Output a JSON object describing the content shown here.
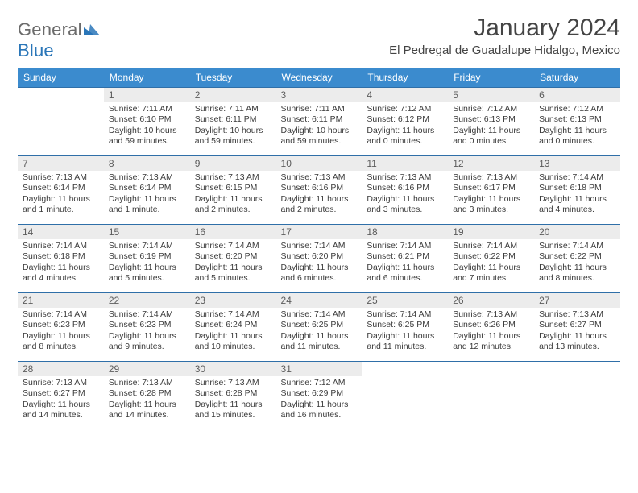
{
  "brand": {
    "part1": "General",
    "part2": "Blue"
  },
  "title": "January 2024",
  "location": "El Pedregal de Guadalupe Hidalgo, Mexico",
  "colors": {
    "header_bg": "#3b8bce",
    "header_fg": "#ffffff",
    "daynum_bg": "#ececec",
    "row_border": "#2f6fa8",
    "logo_gray": "#6b6b6b",
    "logo_blue": "#2a76b8"
  },
  "weekdays": [
    "Sunday",
    "Monday",
    "Tuesday",
    "Wednesday",
    "Thursday",
    "Friday",
    "Saturday"
  ],
  "weeks": [
    [
      {
        "n": "",
        "sunrise": "",
        "sunset": "",
        "daylight": ""
      },
      {
        "n": "1",
        "sunrise": "Sunrise: 7:11 AM",
        "sunset": "Sunset: 6:10 PM",
        "daylight": "Daylight: 10 hours and 59 minutes."
      },
      {
        "n": "2",
        "sunrise": "Sunrise: 7:11 AM",
        "sunset": "Sunset: 6:11 PM",
        "daylight": "Daylight: 10 hours and 59 minutes."
      },
      {
        "n": "3",
        "sunrise": "Sunrise: 7:11 AM",
        "sunset": "Sunset: 6:11 PM",
        "daylight": "Daylight: 10 hours and 59 minutes."
      },
      {
        "n": "4",
        "sunrise": "Sunrise: 7:12 AM",
        "sunset": "Sunset: 6:12 PM",
        "daylight": "Daylight: 11 hours and 0 minutes."
      },
      {
        "n": "5",
        "sunrise": "Sunrise: 7:12 AM",
        "sunset": "Sunset: 6:13 PM",
        "daylight": "Daylight: 11 hours and 0 minutes."
      },
      {
        "n": "6",
        "sunrise": "Sunrise: 7:12 AM",
        "sunset": "Sunset: 6:13 PM",
        "daylight": "Daylight: 11 hours and 0 minutes."
      }
    ],
    [
      {
        "n": "7",
        "sunrise": "Sunrise: 7:13 AM",
        "sunset": "Sunset: 6:14 PM",
        "daylight": "Daylight: 11 hours and 1 minute."
      },
      {
        "n": "8",
        "sunrise": "Sunrise: 7:13 AM",
        "sunset": "Sunset: 6:14 PM",
        "daylight": "Daylight: 11 hours and 1 minute."
      },
      {
        "n": "9",
        "sunrise": "Sunrise: 7:13 AM",
        "sunset": "Sunset: 6:15 PM",
        "daylight": "Daylight: 11 hours and 2 minutes."
      },
      {
        "n": "10",
        "sunrise": "Sunrise: 7:13 AM",
        "sunset": "Sunset: 6:16 PM",
        "daylight": "Daylight: 11 hours and 2 minutes."
      },
      {
        "n": "11",
        "sunrise": "Sunrise: 7:13 AM",
        "sunset": "Sunset: 6:16 PM",
        "daylight": "Daylight: 11 hours and 3 minutes."
      },
      {
        "n": "12",
        "sunrise": "Sunrise: 7:13 AM",
        "sunset": "Sunset: 6:17 PM",
        "daylight": "Daylight: 11 hours and 3 minutes."
      },
      {
        "n": "13",
        "sunrise": "Sunrise: 7:14 AM",
        "sunset": "Sunset: 6:18 PM",
        "daylight": "Daylight: 11 hours and 4 minutes."
      }
    ],
    [
      {
        "n": "14",
        "sunrise": "Sunrise: 7:14 AM",
        "sunset": "Sunset: 6:18 PM",
        "daylight": "Daylight: 11 hours and 4 minutes."
      },
      {
        "n": "15",
        "sunrise": "Sunrise: 7:14 AM",
        "sunset": "Sunset: 6:19 PM",
        "daylight": "Daylight: 11 hours and 5 minutes."
      },
      {
        "n": "16",
        "sunrise": "Sunrise: 7:14 AM",
        "sunset": "Sunset: 6:20 PM",
        "daylight": "Daylight: 11 hours and 5 minutes."
      },
      {
        "n": "17",
        "sunrise": "Sunrise: 7:14 AM",
        "sunset": "Sunset: 6:20 PM",
        "daylight": "Daylight: 11 hours and 6 minutes."
      },
      {
        "n": "18",
        "sunrise": "Sunrise: 7:14 AM",
        "sunset": "Sunset: 6:21 PM",
        "daylight": "Daylight: 11 hours and 6 minutes."
      },
      {
        "n": "19",
        "sunrise": "Sunrise: 7:14 AM",
        "sunset": "Sunset: 6:22 PM",
        "daylight": "Daylight: 11 hours and 7 minutes."
      },
      {
        "n": "20",
        "sunrise": "Sunrise: 7:14 AM",
        "sunset": "Sunset: 6:22 PM",
        "daylight": "Daylight: 11 hours and 8 minutes."
      }
    ],
    [
      {
        "n": "21",
        "sunrise": "Sunrise: 7:14 AM",
        "sunset": "Sunset: 6:23 PM",
        "daylight": "Daylight: 11 hours and 8 minutes."
      },
      {
        "n": "22",
        "sunrise": "Sunrise: 7:14 AM",
        "sunset": "Sunset: 6:23 PM",
        "daylight": "Daylight: 11 hours and 9 minutes."
      },
      {
        "n": "23",
        "sunrise": "Sunrise: 7:14 AM",
        "sunset": "Sunset: 6:24 PM",
        "daylight": "Daylight: 11 hours and 10 minutes."
      },
      {
        "n": "24",
        "sunrise": "Sunrise: 7:14 AM",
        "sunset": "Sunset: 6:25 PM",
        "daylight": "Daylight: 11 hours and 11 minutes."
      },
      {
        "n": "25",
        "sunrise": "Sunrise: 7:14 AM",
        "sunset": "Sunset: 6:25 PM",
        "daylight": "Daylight: 11 hours and 11 minutes."
      },
      {
        "n": "26",
        "sunrise": "Sunrise: 7:13 AM",
        "sunset": "Sunset: 6:26 PM",
        "daylight": "Daylight: 11 hours and 12 minutes."
      },
      {
        "n": "27",
        "sunrise": "Sunrise: 7:13 AM",
        "sunset": "Sunset: 6:27 PM",
        "daylight": "Daylight: 11 hours and 13 minutes."
      }
    ],
    [
      {
        "n": "28",
        "sunrise": "Sunrise: 7:13 AM",
        "sunset": "Sunset: 6:27 PM",
        "daylight": "Daylight: 11 hours and 14 minutes."
      },
      {
        "n": "29",
        "sunrise": "Sunrise: 7:13 AM",
        "sunset": "Sunset: 6:28 PM",
        "daylight": "Daylight: 11 hours and 14 minutes."
      },
      {
        "n": "30",
        "sunrise": "Sunrise: 7:13 AM",
        "sunset": "Sunset: 6:28 PM",
        "daylight": "Daylight: 11 hours and 15 minutes."
      },
      {
        "n": "31",
        "sunrise": "Sunrise: 7:12 AM",
        "sunset": "Sunset: 6:29 PM",
        "daylight": "Daylight: 11 hours and 16 minutes."
      },
      {
        "n": "",
        "sunrise": "",
        "sunset": "",
        "daylight": ""
      },
      {
        "n": "",
        "sunrise": "",
        "sunset": "",
        "daylight": ""
      },
      {
        "n": "",
        "sunrise": "",
        "sunset": "",
        "daylight": ""
      }
    ]
  ]
}
